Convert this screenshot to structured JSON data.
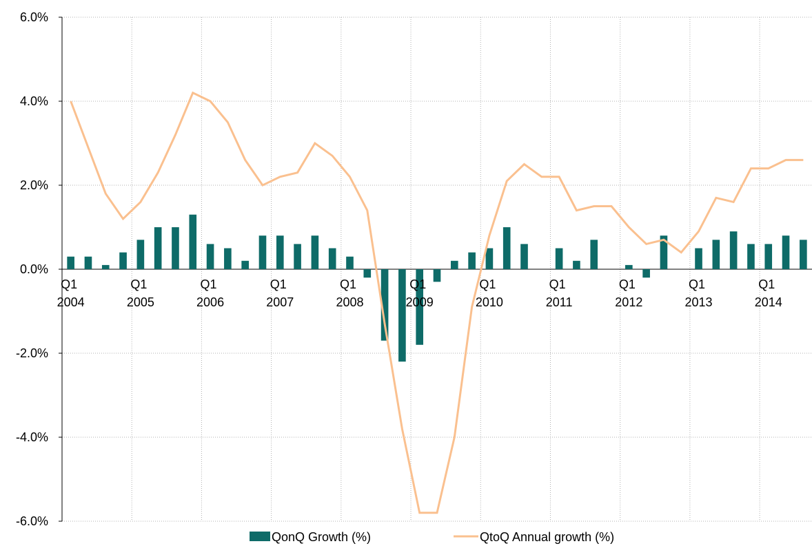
{
  "chart_data": {
    "type": "bar-line",
    "categories": [
      "Q1 2004",
      null,
      null,
      null,
      "Q1 2005",
      null,
      null,
      null,
      "Q1 2006",
      null,
      null,
      null,
      "Q1 2007",
      null,
      null,
      null,
      "Q1 2008",
      null,
      null,
      null,
      "Q1 2009",
      null,
      null,
      null,
      "Q1 2010",
      null,
      null,
      null,
      "Q1 2011",
      null,
      null,
      null,
      "Q1 2012",
      null,
      null,
      null,
      "Q1 2013",
      null,
      null,
      null,
      "Q1 2014",
      null,
      null
    ],
    "series": [
      {
        "name": "QonQ Growth (%)",
        "type": "bar",
        "color": "#0e6b68",
        "values": [
          0.3,
          0.3,
          0.1,
          0.4,
          0.7,
          1.0,
          1.0,
          1.3,
          0.6,
          0.5,
          0.2,
          0.8,
          0.8,
          0.6,
          0.8,
          0.5,
          0.3,
          -0.2,
          -1.7,
          -2.2,
          -1.8,
          -0.3,
          0.2,
          0.4,
          0.5,
          1.0,
          0.6,
          0.0,
          0.5,
          0.2,
          0.7,
          0.0,
          0.1,
          -0.2,
          0.8,
          0.0,
          0.5,
          0.7,
          0.9,
          0.6,
          0.6,
          0.8,
          0.7
        ]
      },
      {
        "name": "QtoQ Annual growth (%)",
        "type": "line",
        "color": "#fac08f",
        "values": [
          4.0,
          2.9,
          1.8,
          1.2,
          1.6,
          2.3,
          3.2,
          4.2,
          4.0,
          3.5,
          2.6,
          2.0,
          2.2,
          2.3,
          3.0,
          2.7,
          2.2,
          1.4,
          -1.3,
          -3.8,
          -5.8,
          -5.8,
          -4.0,
          -0.9,
          0.8,
          2.1,
          2.5,
          2.2,
          2.2,
          1.4,
          1.5,
          1.5,
          1.0,
          0.6,
          0.7,
          0.4,
          0.9,
          1.7,
          1.6,
          2.4,
          2.4,
          2.6,
          2.6
        ]
      }
    ],
    "ylim": [
      -6,
      6
    ],
    "yticks": [
      {
        "value": -6,
        "label": "-6.0%"
      },
      {
        "value": -4,
        "label": "-4.0%"
      },
      {
        "value": -2,
        "label": "-2.0%"
      },
      {
        "value": 0,
        "label": "0.0%"
      },
      {
        "value": 2,
        "label": "2.0%"
      },
      {
        "value": 4,
        "label": "4.0%"
      },
      {
        "value": 6,
        "label": "6.0%"
      }
    ],
    "grid": true,
    "legend": "bottom"
  }
}
